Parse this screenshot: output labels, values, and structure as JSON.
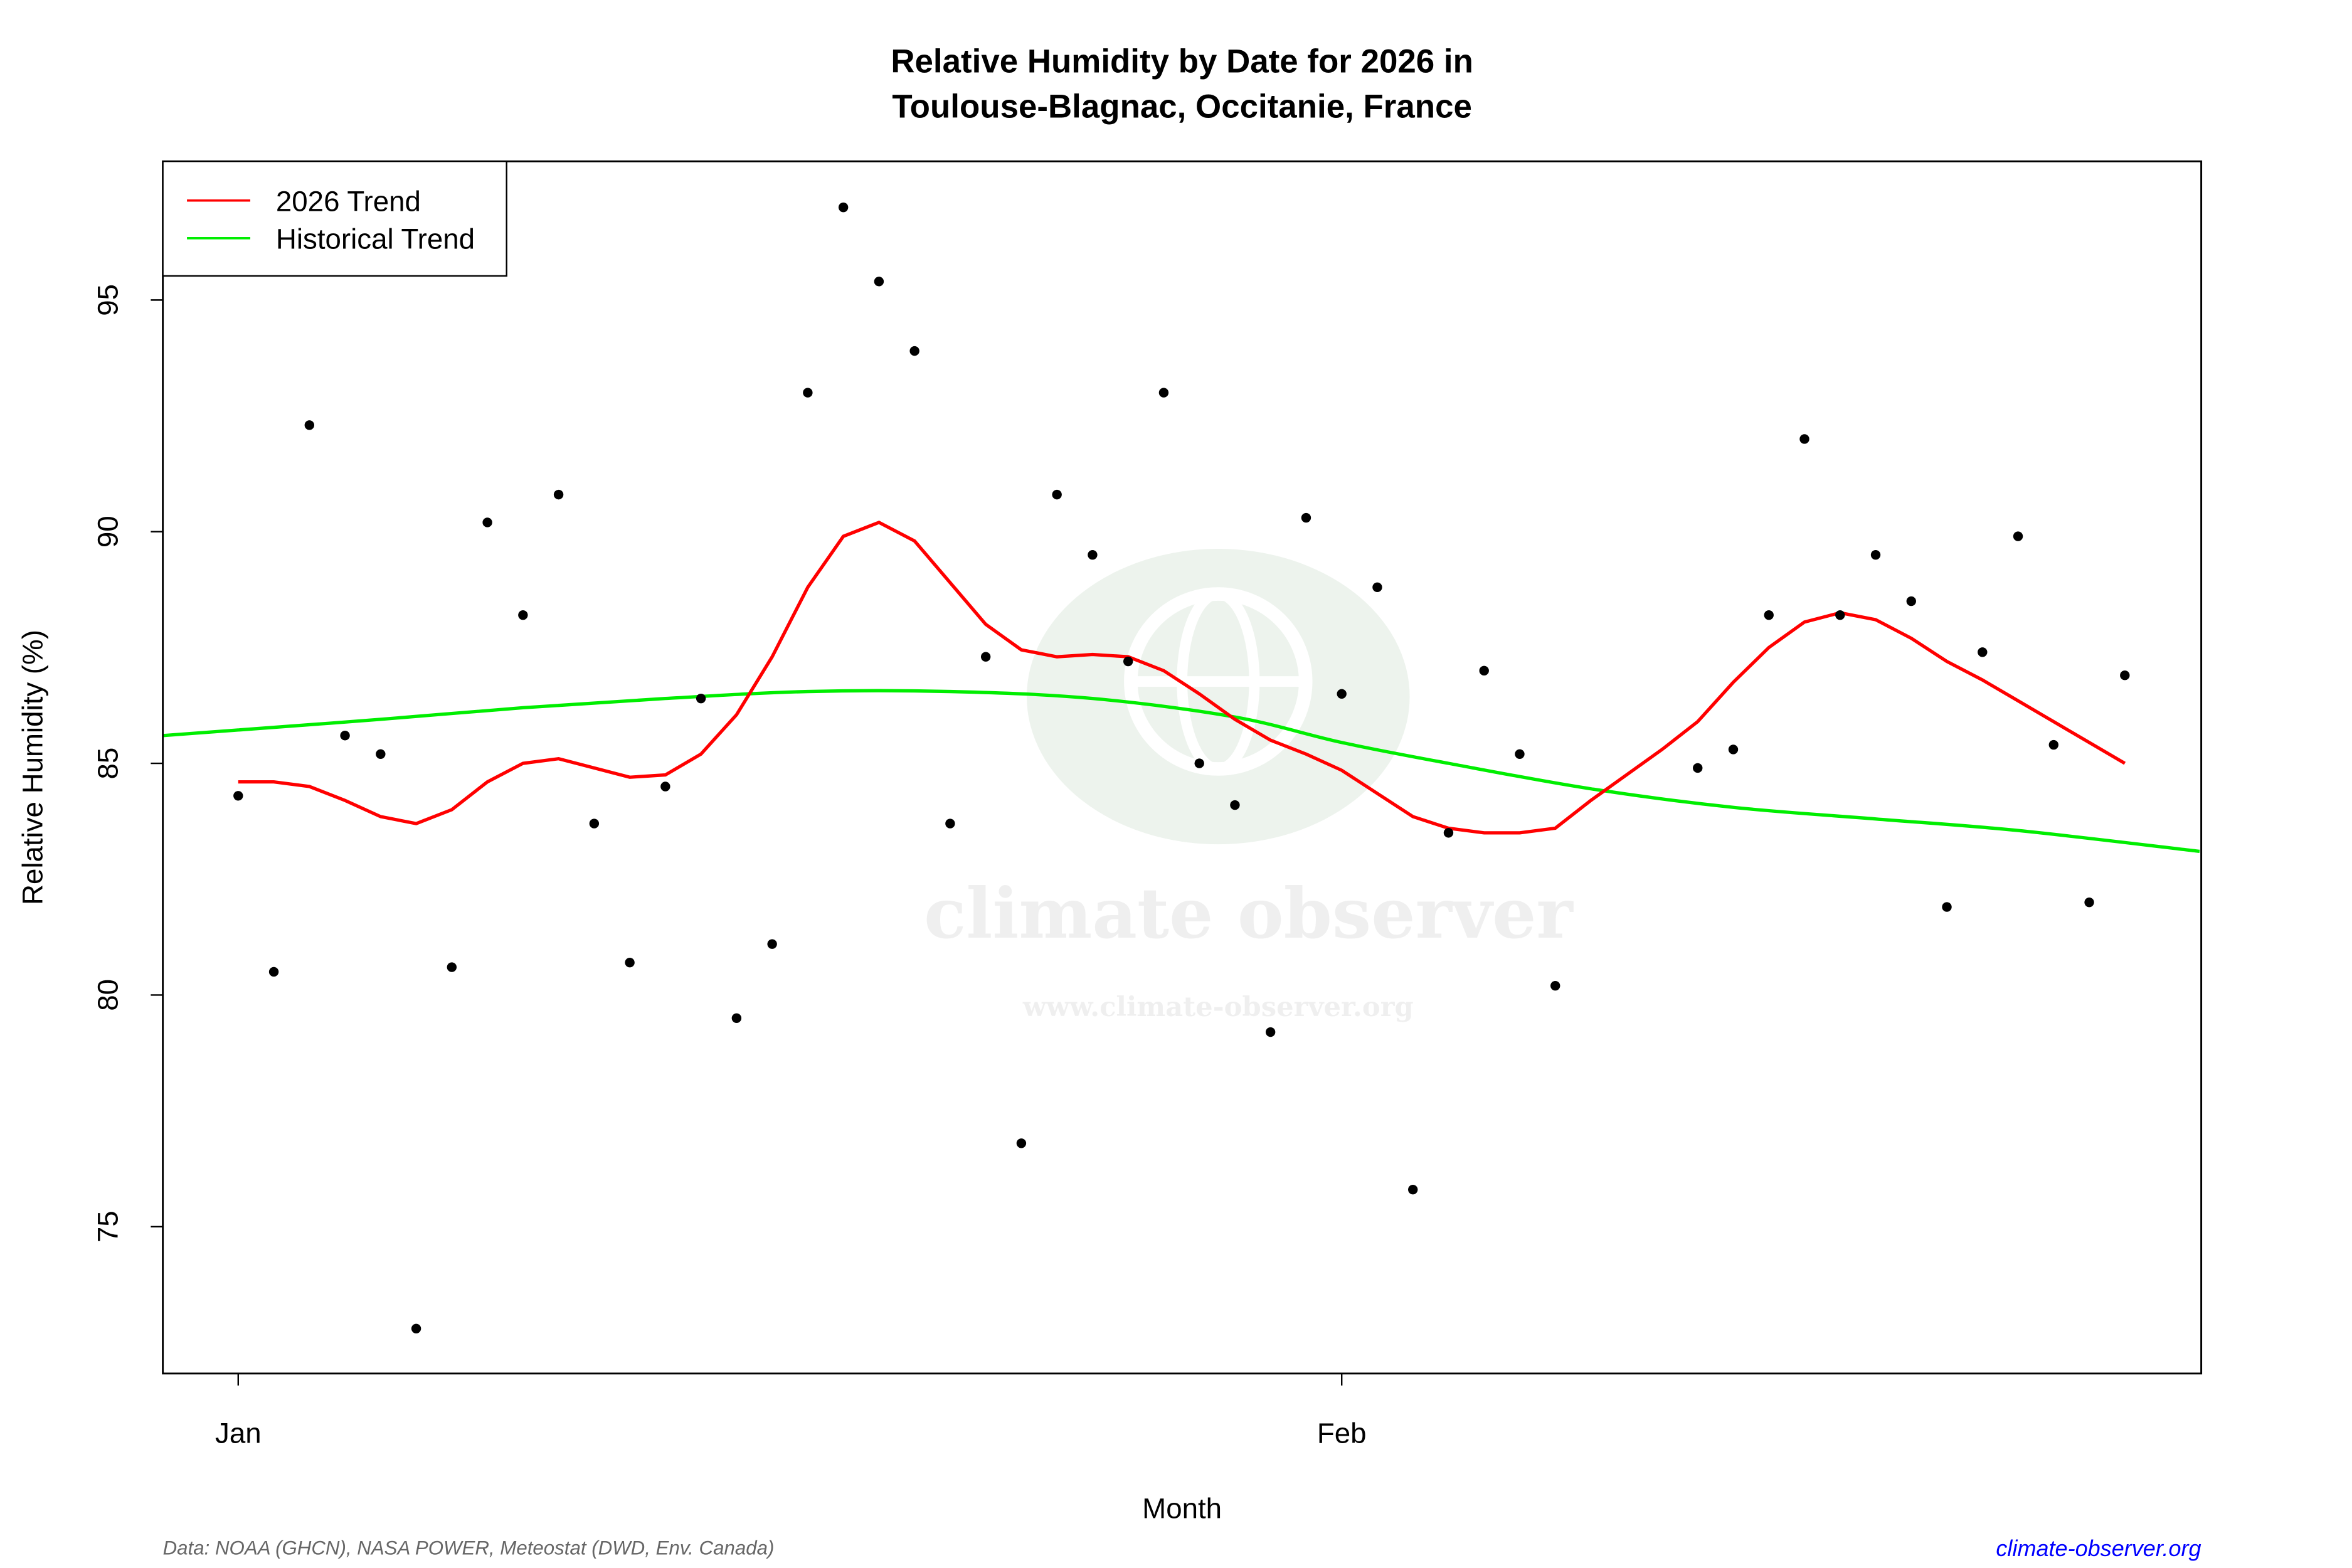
{
  "chart_data": {
    "type": "scatter",
    "title": "Relative Humidity by Date for 2026 in",
    "subtitle": "Toulouse-Blagnac, Occitanie, France",
    "xlabel": "Month",
    "ylabel": "Relative Humidity (%)",
    "x_ticks": [
      {
        "label": "Jan",
        "day": 0
      },
      {
        "label": "Feb",
        "day": 31
      }
    ],
    "y_ticks": [
      75,
      80,
      85,
      90,
      95
    ],
    "ylim": [
      71.8,
      98.0
    ],
    "xlim_days": [
      -2.1,
      55.1
    ],
    "legend": {
      "placement": "top-left",
      "entries": [
        {
          "label": "2026 Trend",
          "color": "#ff0000"
        },
        {
          "label": "Historical Trend",
          "color": "#00ee00"
        }
      ]
    },
    "observations": {
      "days": [
        0,
        1,
        2,
        3,
        4,
        5,
        6,
        7,
        8,
        9,
        10,
        11,
        12,
        13,
        14,
        15,
        16,
        17,
        18,
        19,
        20,
        21,
        22,
        23,
        24,
        25,
        26,
        27,
        28,
        29,
        30,
        31,
        32,
        33,
        34,
        35,
        36,
        37,
        41,
        42,
        43,
        44,
        45,
        46,
        47,
        48,
        49,
        50,
        51,
        52,
        53
      ],
      "values": [
        84.3,
        80.5,
        92.3,
        85.6,
        85.2,
        72.8,
        80.6,
        90.2,
        88.2,
        90.8,
        83.7,
        80.7,
        84.5,
        86.4,
        79.5,
        81.1,
        93.0,
        97.0,
        95.4,
        93.9,
        83.7,
        87.3,
        76.8,
        90.8,
        89.5,
        87.2,
        93.0,
        85.0,
        84.1,
        79.2,
        90.3,
        86.5,
        88.8,
        75.8,
        83.5,
        87.0,
        85.2,
        80.2,
        84.9,
        85.3,
        88.2,
        92.0,
        88.2,
        89.5,
        88.5,
        81.9,
        87.4,
        89.9,
        85.4,
        82.0,
        86.9
      ]
    },
    "series": [
      {
        "name": "2026 Trend",
        "color": "#ff0000",
        "days": [
          0,
          1,
          2,
          3,
          4,
          5,
          6,
          7,
          8,
          9,
          10,
          11,
          12,
          13,
          14,
          15,
          16,
          17,
          18,
          19,
          20,
          21,
          22,
          23,
          24,
          25,
          26,
          27,
          28,
          29,
          30,
          31,
          32,
          33,
          34,
          35,
          36,
          37,
          38,
          39,
          40,
          41,
          42,
          43,
          44,
          45,
          46,
          47,
          48,
          49,
          50,
          51,
          52,
          53
        ],
        "values": [
          84.6,
          84.6,
          84.5,
          84.2,
          83.85,
          83.7,
          84.0,
          84.6,
          85.0,
          85.1,
          84.9,
          84.7,
          84.75,
          85.2,
          86.05,
          87.3,
          88.8,
          89.9,
          90.2,
          89.8,
          88.9,
          88.0,
          87.45,
          87.3,
          87.35,
          87.3,
          87.0,
          86.5,
          85.95,
          85.5,
          85.2,
          84.85,
          84.35,
          83.85,
          83.6,
          83.5,
          83.5,
          83.6,
          84.2,
          84.75,
          85.3,
          85.9,
          86.75,
          87.5,
          88.05,
          88.25,
          88.1,
          87.7,
          87.2,
          86.8,
          86.35,
          85.9,
          85.45,
          85.0
        ]
      },
      {
        "name": "Historical Trend",
        "color": "#00ee00",
        "days": [
          -2.1,
          0,
          4,
          8,
          12,
          16,
          20,
          24,
          28,
          31,
          34,
          38,
          42,
          46,
          50,
          55.1
        ],
        "values": [
          85.6,
          85.72,
          85.95,
          86.2,
          86.4,
          86.55,
          86.55,
          86.4,
          86.0,
          85.45,
          85.0,
          84.45,
          84.05,
          83.8,
          83.55,
          83.1
        ]
      }
    ],
    "watermark": {
      "name": "climate observer",
      "url": "www.climate-observer.org"
    },
    "source_note": "Data: NOAA (GHCN), NASA POWER, Meteostat (DWD, Env. Canada)",
    "site_link": "climate-observer.org"
  }
}
